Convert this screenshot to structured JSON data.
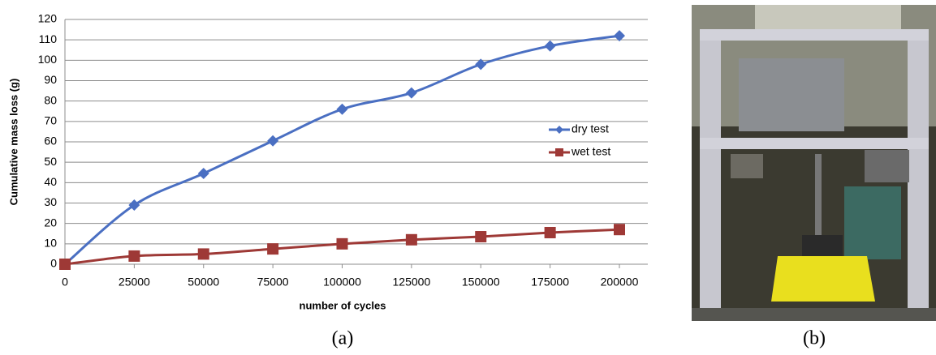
{
  "chart_data": {
    "type": "line",
    "x": [
      0,
      25000,
      50000,
      75000,
      100000,
      125000,
      150000,
      175000,
      200000
    ],
    "series": [
      {
        "name": "dry test",
        "color": "#4a6fc2",
        "marker": "diamond",
        "values": [
          0,
          29,
          44.5,
          60.5,
          76,
          84,
          98,
          107,
          112
        ]
      },
      {
        "name": "wet test",
        "color": "#9e3936",
        "marker": "square",
        "values": [
          0,
          4,
          5,
          7.5,
          10,
          12,
          13.5,
          15.5,
          17
        ]
      }
    ],
    "xlabel": "number of cycles",
    "ylabel": "Cumulative mass loss (g)",
    "xlim": [
      0,
      200000
    ],
    "xticks": [
      0,
      25000,
      50000,
      75000,
      100000,
      125000,
      150000,
      175000,
      200000
    ],
    "ylim": [
      0,
      120
    ],
    "yticks": [
      0,
      10,
      20,
      30,
      40,
      50,
      60,
      70,
      80,
      90,
      100,
      110,
      120
    ],
    "grid": true,
    "legend": "right"
  },
  "captions": [
    "(a)",
    "(b)"
  ]
}
